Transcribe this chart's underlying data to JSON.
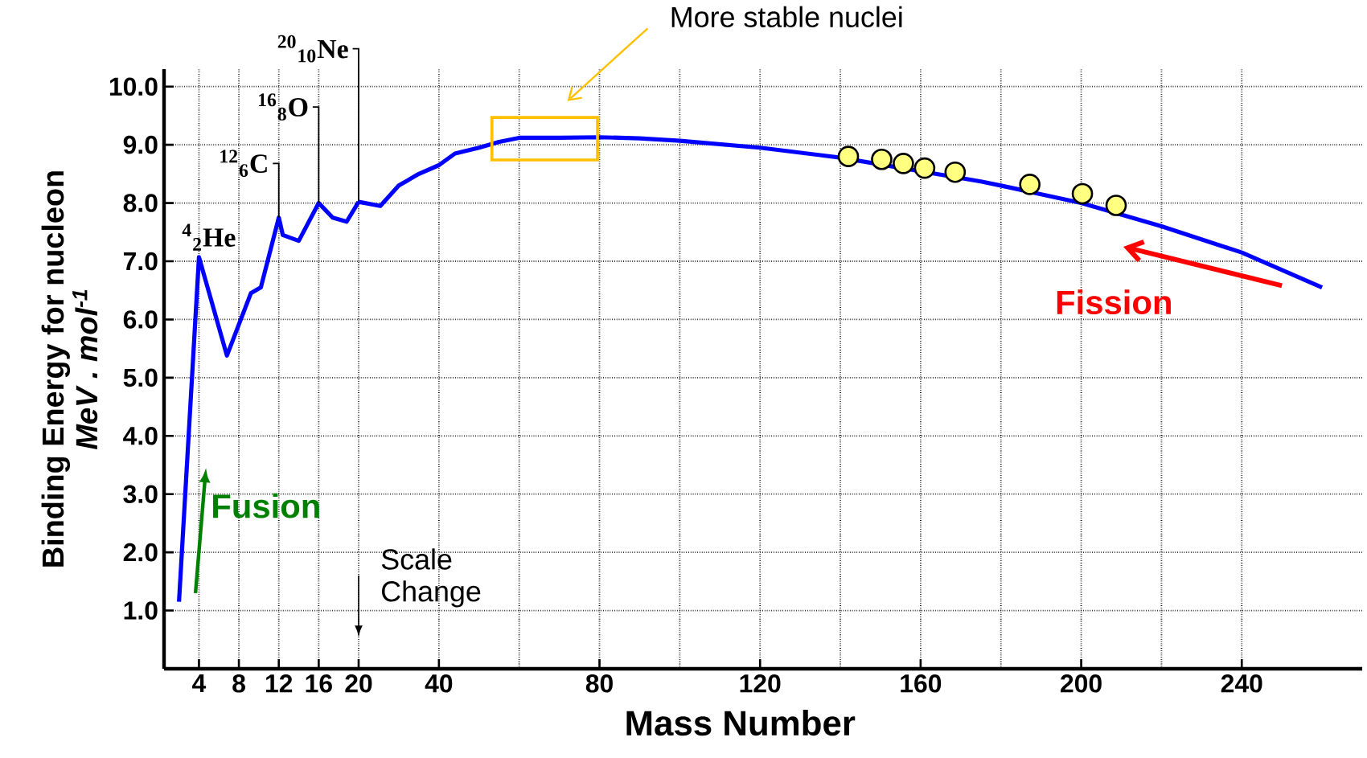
{
  "chart_data": [
    {
      "type": "line",
      "ylabel": "Binding Energy for nucleon",
      "xlim": [
        0.5,
        20
      ],
      "ylim": [
        0,
        10.3
      ],
      "xticks": [
        4,
        8,
        12,
        16,
        20
      ],
      "yticks": [
        {
          "value": 1,
          "label": "1.0"
        },
        {
          "value": 2,
          "label": "2.0"
        },
        {
          "value": 3,
          "label": "3.0"
        },
        {
          "value": 4,
          "label": "4.0"
        },
        {
          "value": 5,
          "label": "5.0"
        },
        {
          "value": 6,
          "label": "6.0"
        },
        {
          "value": 7,
          "label": "7.0"
        },
        {
          "value": 8,
          "label": "8.0"
        },
        {
          "value": 9,
          "label": "9.0"
        },
        {
          "value": 10,
          "label": "10.0"
        }
      ],
      "grid": true,
      "series": [
        {
          "color": "#0000ff",
          "x": [
            2,
            4,
            6.8,
            9.2,
            10.2,
            12,
            12.4,
            14,
            16,
            17.4,
            18.8,
            20
          ],
          "values": [
            1.15,
            7.07,
            5.38,
            6.45,
            6.55,
            7.75,
            7.45,
            7.35,
            8.0,
            7.75,
            7.68,
            8.02
          ]
        }
      ],
      "annotations": [
        {
          "text": "$^{4}$$_{2}$He",
          "x": 4,
          "y": 7.07
        },
        {
          "text": "$^{12}$$_{6}$C",
          "x": 12,
          "y": 7.75
        },
        {
          "text": "$^{16}$$_{8}$O",
          "x": 16,
          "y": 8.0
        },
        {
          "text": "$^{20}$$_{10}$Ne",
          "x": 20,
          "y": 8.02
        },
        "Fusion",
        "Scale Change",
        "MeV . mol$^{-1}$"
      ]
    },
    {
      "type": "line",
      "xlabel": "Mass Number",
      "xlim": [
        20,
        270
      ],
      "ylim": [
        0,
        10.3
      ],
      "xticks": [
        40,
        80,
        120,
        160,
        200,
        240
      ],
      "yticks": [
        {
          "value": 1,
          "label": null
        },
        {
          "value": 2,
          "label": null
        },
        {
          "value": 3,
          "label": null
        },
        {
          "value": 4,
          "label": null
        },
        {
          "value": 5,
          "label": null
        },
        {
          "value": 6,
          "label": null
        },
        {
          "value": 7,
          "label": null
        },
        {
          "value": 8,
          "label": null
        },
        {
          "value": 9,
          "label": null
        },
        {
          "value": 10,
          "label": null
        }
      ],
      "tick_labels": "x",
      "grid": true,
      "series": [
        {
          "color": "#0000ff",
          "x": [
            20,
            25.4,
            30,
            35,
            40,
            44,
            50,
            55,
            60,
            70,
            80,
            90,
            100,
            120,
            140,
            175,
            180,
            200,
            220,
            240,
            260
          ],
          "values": [
            8.02,
            7.95,
            8.3,
            8.5,
            8.65,
            8.85,
            8.95,
            9.05,
            9.12,
            9.12,
            9.13,
            9.11,
            9.07,
            8.95,
            8.78,
            8.37,
            8.3,
            8.0,
            7.6,
            7.15,
            6.55
          ]
        },
        {
          "type": "scatter",
          "color": "#ffff80",
          "x": [
            142,
            150.3,
            155.7,
            161,
            168.6,
            187.2,
            200.3,
            208.7
          ],
          "values": [
            8.8,
            8.75,
            8.68,
            8.6,
            8.53,
            8.32,
            8.16,
            7.96
          ]
        }
      ],
      "annotations": [
        "More stable nuclei",
        "Fission"
      ]
    }
  ]
}
